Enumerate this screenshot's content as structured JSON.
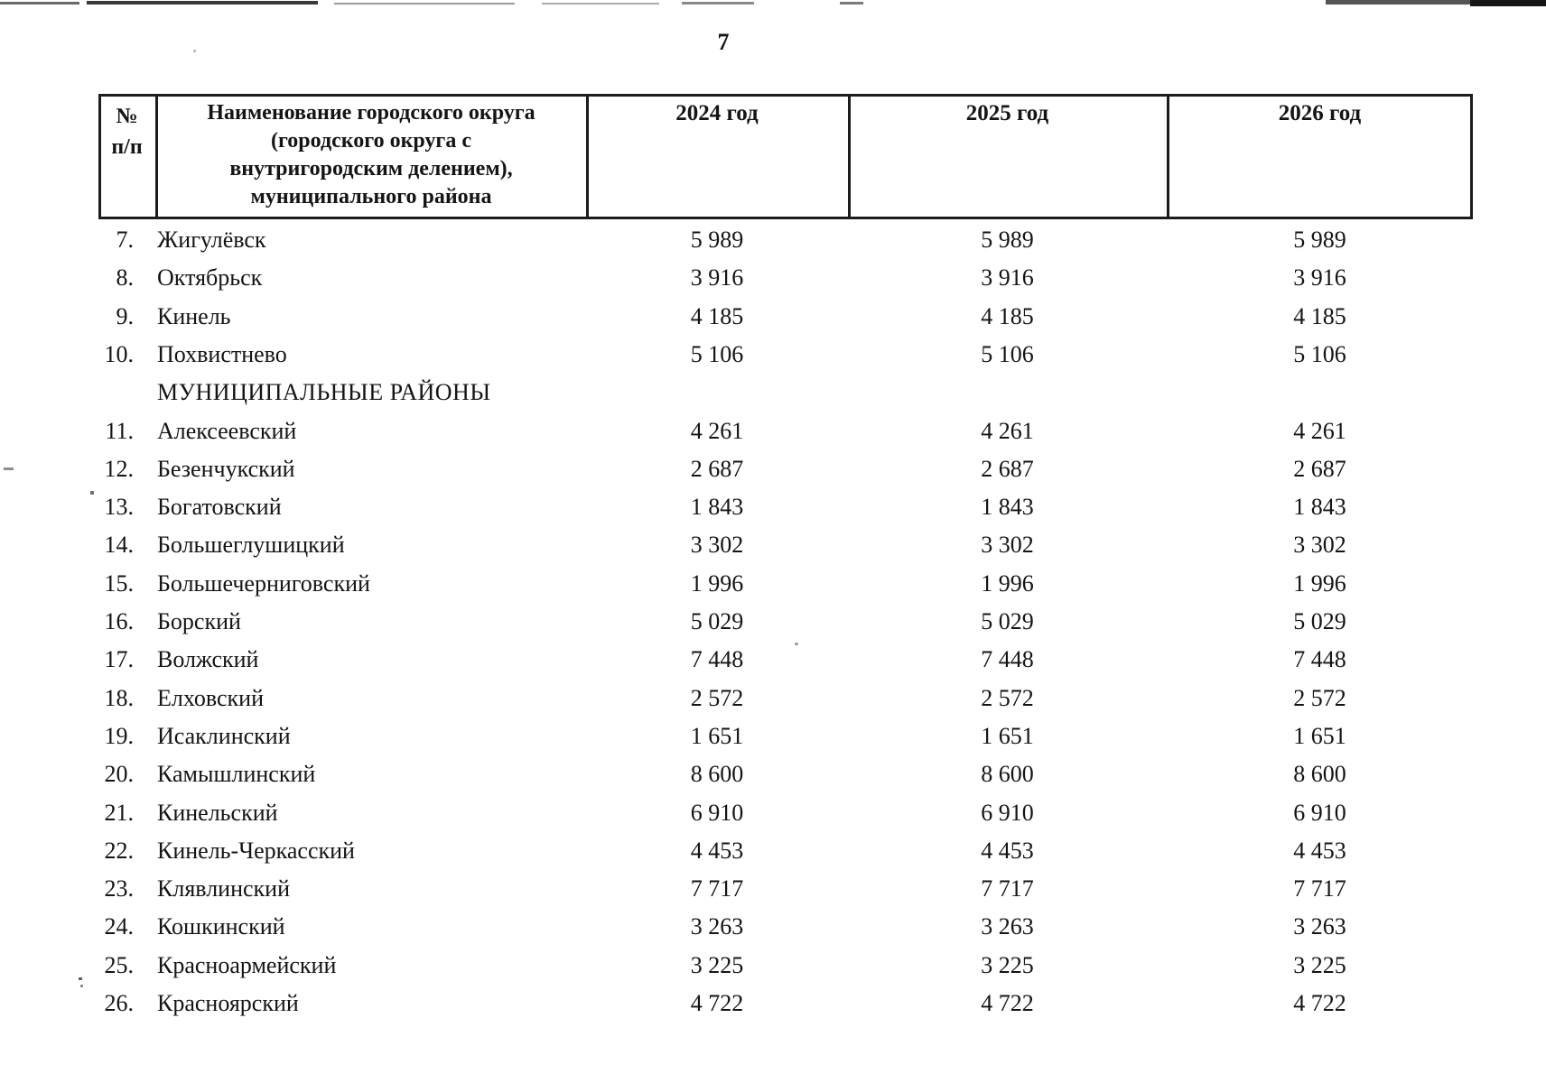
{
  "page": {
    "number": "7"
  },
  "colors": {
    "ink": "#141414",
    "table_border": "#1c1c1c"
  },
  "table": {
    "header": {
      "num": "№\nп/п",
      "name": "Наименование городского округа\n(городского округа с\nвнутригородским делением),\nмуниципального района",
      "year_2024": "2024 год",
      "year_2025": "2025 год",
      "year_2026": "2026 год"
    },
    "rows": [
      {
        "num": "7.",
        "name": "Жигулёвск",
        "values": [
          "5 989",
          "5 989",
          "5 989"
        ]
      },
      {
        "num": "8.",
        "name": "Октябрьск",
        "values": [
          "3 916",
          "3 916",
          "3 916"
        ]
      },
      {
        "num": "9.",
        "name": "Кинель",
        "values": [
          "4 185",
          "4 185",
          "4 185"
        ]
      },
      {
        "num": "10.",
        "name": "Похвистнево",
        "values": [
          "5 106",
          "5 106",
          "5 106"
        ]
      },
      {
        "num": "",
        "name": "МУНИЦИПАЛЬНЫЕ РАЙОНЫ",
        "values": [
          "",
          "",
          ""
        ],
        "section": true
      },
      {
        "num": "11.",
        "name": "Алексеевский",
        "values": [
          "4 261",
          "4 261",
          "4 261"
        ]
      },
      {
        "num": "12.",
        "name": "Безенчукский",
        "values": [
          "2 687",
          "2 687",
          "2 687"
        ]
      },
      {
        "num": "13.",
        "name": "Богатовский",
        "values": [
          "1 843",
          "1 843",
          "1 843"
        ]
      },
      {
        "num": "14.",
        "name": "Большеглушицкий",
        "values": [
          "3 302",
          "3 302",
          "3 302"
        ]
      },
      {
        "num": "15.",
        "name": "Большечерниговский",
        "values": [
          "1 996",
          "1 996",
          "1 996"
        ]
      },
      {
        "num": "16.",
        "name": "Борский",
        "values": [
          "5 029",
          "5 029",
          "5 029"
        ]
      },
      {
        "num": "17.",
        "name": "Волжский",
        "values": [
          "7 448",
          "7 448",
          "7 448"
        ]
      },
      {
        "num": "18.",
        "name": "Елховский",
        "values": [
          "2 572",
          "2 572",
          "2 572"
        ]
      },
      {
        "num": "19.",
        "name": "Исаклинский",
        "values": [
          "1 651",
          "1 651",
          "1 651"
        ]
      },
      {
        "num": "20.",
        "name": "Камышлинский",
        "values": [
          "8 600",
          "8 600",
          "8 600"
        ]
      },
      {
        "num": "21.",
        "name": "Кинельский",
        "values": [
          "6 910",
          "6 910",
          "6 910"
        ]
      },
      {
        "num": "22.",
        "name": "Кинель-Черкасский",
        "values": [
          "4 453",
          "4 453",
          "4 453"
        ]
      },
      {
        "num": "23.",
        "name": "Клявлинский",
        "values": [
          "7 717",
          "7 717",
          "7 717"
        ]
      },
      {
        "num": "24.",
        "name": "Кошкинский",
        "values": [
          "3 263",
          "3 263",
          "3 263"
        ]
      },
      {
        "num": "25.",
        "name": "Красноармейский",
        "values": [
          "3 225",
          "3 225",
          "3 225"
        ]
      },
      {
        "num": "26.",
        "name": "Красноярский",
        "values": [
          "4 722",
          "4 722",
          "4 722"
        ]
      }
    ]
  }
}
